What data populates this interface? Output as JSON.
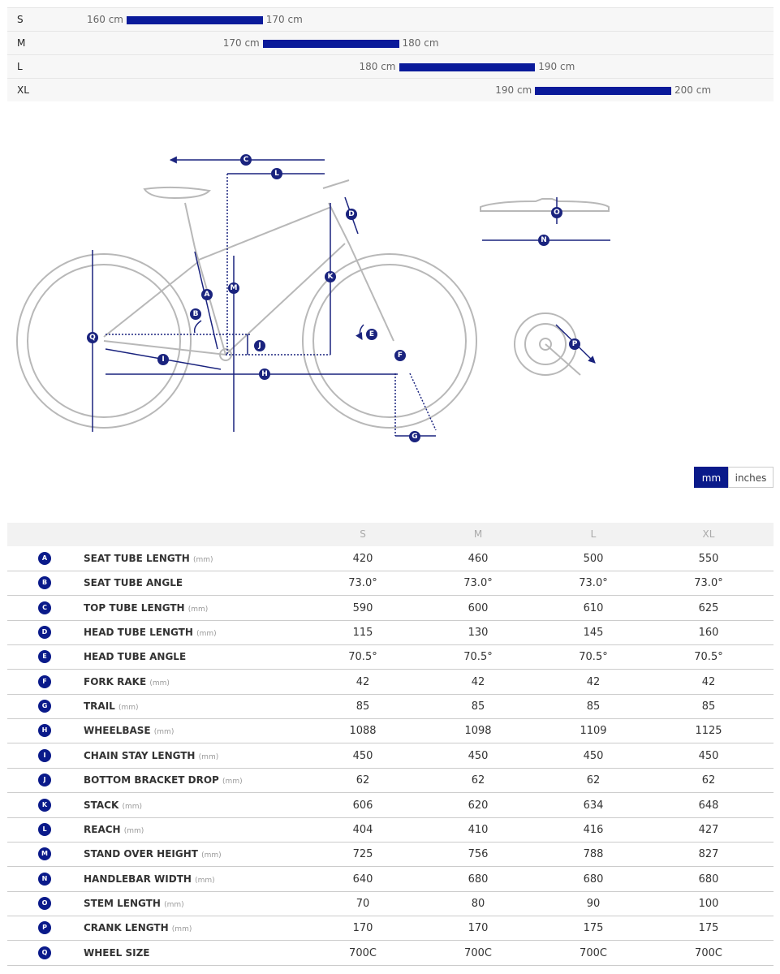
{
  "size_chart": {
    "rows": [
      {
        "size": "S",
        "from": {
          "value": 160,
          "label": "160 cm"
        },
        "to": {
          "value": 170,
          "label": "170 cm"
        }
      },
      {
        "size": "M",
        "from": {
          "value": 170,
          "label": "170 cm"
        },
        "to": {
          "value": 180,
          "label": "180 cm"
        }
      },
      {
        "size": "L",
        "from": {
          "value": 180,
          "label": "180 cm"
        },
        "to": {
          "value": 190,
          "label": "190 cm"
        }
      },
      {
        "size": "XL",
        "from": {
          "value": 190,
          "label": "190 cm"
        },
        "to": {
          "value": 200,
          "label": "200 cm"
        }
      }
    ]
  },
  "diagram": {
    "labels": [
      "C",
      "L",
      "D",
      "O",
      "N",
      "M",
      "K",
      "A",
      "B",
      "Q",
      "E",
      "J",
      "I",
      "H",
      "F",
      "P",
      "G"
    ]
  },
  "unit_toggle": {
    "options": [
      "mm",
      "inches"
    ]
  },
  "table": {
    "columns": [
      "S",
      "M",
      "L",
      "XL"
    ],
    "rows": [
      {
        "letter": "A",
        "name": "SEAT TUBE LENGTH",
        "unit": "(mm)",
        "values": [
          "420",
          "460",
          "500",
          "550"
        ]
      },
      {
        "letter": "B",
        "name": "SEAT TUBE ANGLE",
        "values": [
          "73.0°",
          "73.0°",
          "73.0°",
          "73.0°"
        ]
      },
      {
        "letter": "C",
        "name": "TOP TUBE LENGTH",
        "unit": "(mm)",
        "values": [
          "590",
          "600",
          "610",
          "625"
        ]
      },
      {
        "letter": "D",
        "name": "HEAD TUBE LENGTH",
        "unit": "(mm)",
        "values": [
          "115",
          "130",
          "145",
          "160"
        ]
      },
      {
        "letter": "E",
        "name": "HEAD TUBE ANGLE",
        "values": [
          "70.5°",
          "70.5°",
          "70.5°",
          "70.5°"
        ]
      },
      {
        "letter": "F",
        "name": "FORK RAKE",
        "unit": "(mm)",
        "values": [
          "42",
          "42",
          "42",
          "42"
        ]
      },
      {
        "letter": "G",
        "name": "TRAIL",
        "unit": "(mm)",
        "values": [
          "85",
          "85",
          "85",
          "85"
        ]
      },
      {
        "letter": "H",
        "name": "WHEELBASE",
        "unit": "(mm)",
        "values": [
          "1088",
          "1098",
          "1109",
          "1125"
        ]
      },
      {
        "letter": "I",
        "name": "CHAIN STAY LENGTH",
        "unit": "(mm)",
        "values": [
          "450",
          "450",
          "450",
          "450"
        ]
      },
      {
        "letter": "J",
        "name": "BOTTOM BRACKET DROP",
        "unit": "(mm)",
        "values": [
          "62",
          "62",
          "62",
          "62"
        ]
      },
      {
        "letter": "K",
        "name": "STACK",
        "unit": "(mm)",
        "values": [
          "606",
          "620",
          "634",
          "648"
        ]
      },
      {
        "letter": "L",
        "name": "REACH",
        "unit": "(mm)",
        "values": [
          "404",
          "410",
          "416",
          "427"
        ]
      },
      {
        "letter": "M",
        "name": "STAND OVER HEIGHT",
        "unit": "(mm)",
        "values": [
          "725",
          "756",
          "788",
          "827"
        ]
      },
      {
        "letter": "N",
        "name": "HANDLEBAR WIDTH",
        "unit": "(mm)",
        "values": [
          "640",
          "680",
          "680",
          "680"
        ]
      },
      {
        "letter": "O",
        "name": "STEM LENGTH",
        "unit": "(mm)",
        "values": [
          "70",
          "80",
          "90",
          "100"
        ]
      },
      {
        "letter": "P",
        "name": "CRANK LENGTH",
        "unit": "(mm)",
        "values": [
          "170",
          "170",
          "175",
          "175"
        ]
      },
      {
        "letter": "Q",
        "name": "WHEEL SIZE",
        "values": [
          "700C",
          "700C",
          "700C",
          "700C"
        ]
      }
    ]
  }
}
